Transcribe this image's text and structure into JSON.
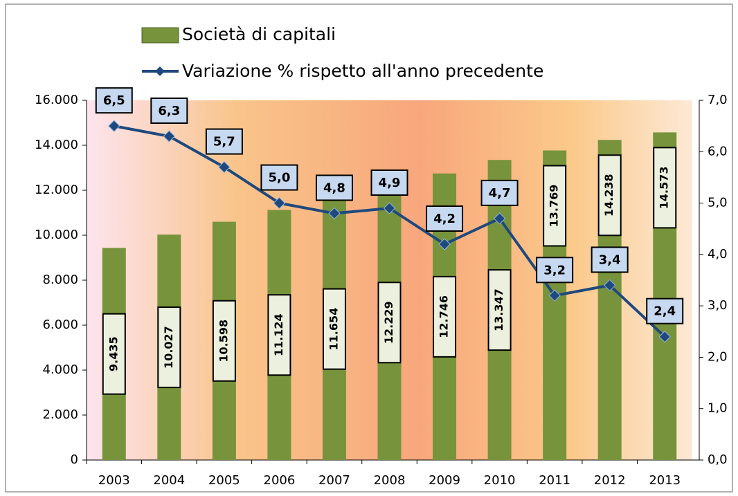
{
  "chart_data": {
    "type": "bar_line",
    "categories": [
      "2003",
      "2004",
      "2005",
      "2006",
      "2007",
      "2008",
      "2009",
      "2010",
      "2011",
      "2012",
      "2013"
    ],
    "series": [
      {
        "name": "Società di capitali",
        "color": "#77933c",
        "type": "bar",
        "values": [
          9435,
          10027,
          10598,
          11124,
          11654,
          12229,
          12746,
          13347,
          13769,
          14238,
          14573
        ],
        "value_labels": [
          "9.435",
          "10.027",
          "10.598",
          "11.124",
          "11.654",
          "12.229",
          "12.746",
          "13.347",
          "13.769",
          "14.238",
          "14.573"
        ]
      },
      {
        "name": "Variazione % rispetto all'anno precedente",
        "color": "#1f497d",
        "type": "line",
        "axis": "y2",
        "values": [
          6.5,
          6.3,
          5.7,
          5.0,
          4.8,
          4.9,
          4.2,
          4.7,
          3.2,
          3.4,
          2.4
        ],
        "value_labels": [
          "6,5",
          "6,3",
          "5,7",
          "5,0",
          "4,8",
          "4,9",
          "4,2",
          "4,7",
          "3,2",
          "3,4",
          "2,4"
        ]
      }
    ],
    "ylim": [
      0,
      16000
    ],
    "yticks": [
      0,
      {
        "value": 2000,
        "label": "2.000"
      },
      {
        "value": 4000,
        "label": "4.000"
      },
      {
        "value": 6000,
        "label": "6.000"
      },
      {
        "value": 8000,
        "label": "8.000"
      },
      {
        "value": 10000,
        "label": "10.000"
      },
      {
        "value": 12000,
        "label": "12.000"
      },
      {
        "value": 14000,
        "label": "14.000"
      },
      {
        "value": 16000,
        "label": "16.000"
      }
    ],
    "y2lim": [
      0,
      7
    ],
    "y2ticks": [
      {
        "value": 0,
        "label": "0,0"
      },
      {
        "value": 1,
        "label": "1,0"
      },
      {
        "value": 2,
        "label": "2,0"
      },
      {
        "value": 3,
        "label": "3,0"
      },
      {
        "value": 4,
        "label": "4,0"
      },
      {
        "value": 5,
        "label": "5,0"
      },
      {
        "value": 6,
        "label": "6,0"
      },
      {
        "value": 7,
        "label": "7,0"
      }
    ],
    "legend": "top"
  }
}
